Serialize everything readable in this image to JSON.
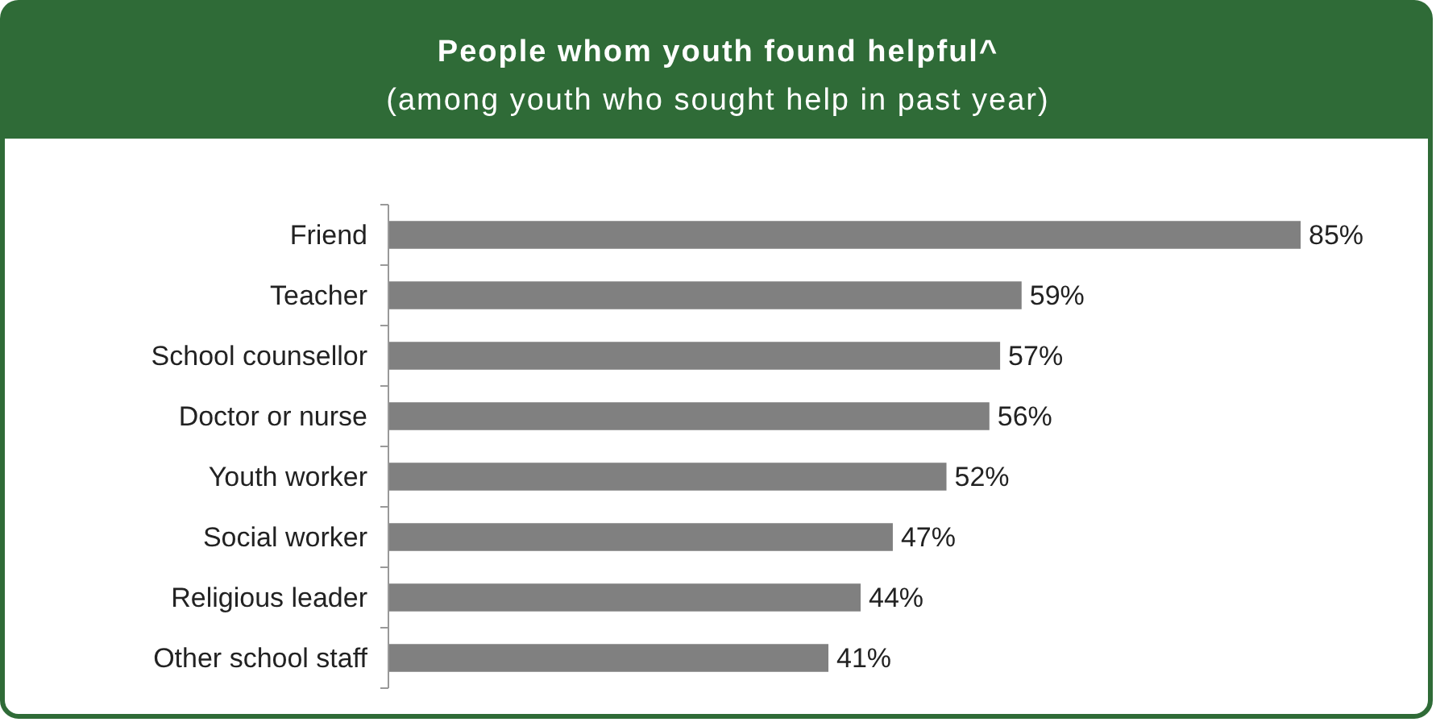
{
  "chart_data": {
    "type": "bar",
    "orientation": "horizontal",
    "title": "People whom youth found helpful^",
    "subtitle": "(among youth who sought help in past year)",
    "categories": [
      "Friend",
      "Teacher",
      "School counsellor",
      "Doctor or nurse",
      "Youth worker",
      "Social worker",
      "Religious leader",
      "Other school staff"
    ],
    "values": [
      85,
      59,
      57,
      56,
      52,
      47,
      44,
      41
    ],
    "value_labels": [
      "85%",
      "59%",
      "57%",
      "56%",
      "52%",
      "47%",
      "44%",
      "41%"
    ],
    "color": "#808080"
  }
}
